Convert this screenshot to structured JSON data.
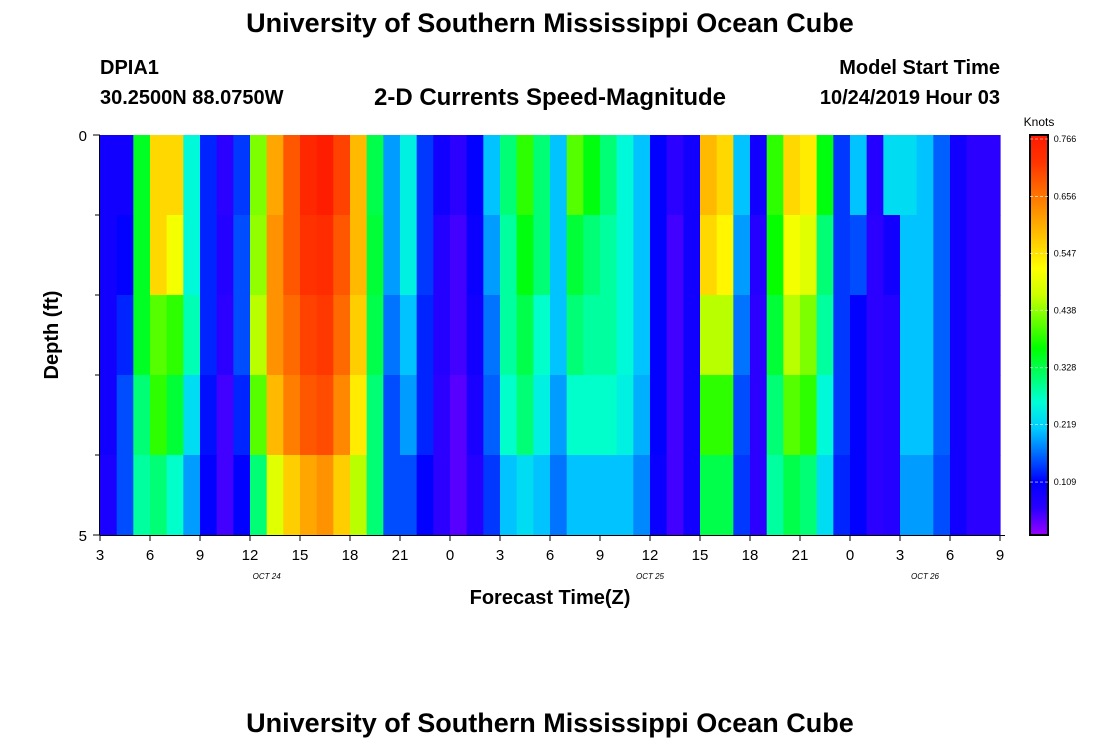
{
  "header": {
    "title_top": "University of Southern Mississippi Ocean Cube",
    "title_bottom": "University of Southern Mississippi Ocean Cube",
    "station": "DPIA1",
    "coords": "30.2500N 88.0750W",
    "chart_title": "2-D Currents Speed-Magnitude",
    "model_label": "Model Start Time",
    "model_time": "10/24/2019 Hour 03"
  },
  "colors": {
    "scale": [
      "#9900ff",
      "#2a00ff",
      "#0000ff",
      "#0066ff",
      "#00ccff",
      "#00ffd5",
      "#00ff66",
      "#00ff00",
      "#66ff00",
      "#ccff00",
      "#ffff00",
      "#ffcc00",
      "#ff9900",
      "#ff6600",
      "#ff3300",
      "#ff1a00"
    ]
  },
  "chart_data": {
    "type": "heatmap",
    "title": "2-D Currents Speed-Magnitude",
    "xlabel": "Forecast Time(Z)",
    "ylabel": "Depth (ft)",
    "x_start_hour": 3,
    "x_end_hour": 57,
    "x_step_hours": 1,
    "ylim": [
      0,
      5
    ],
    "y_ticks": [
      "0",
      "5"
    ],
    "y_minor_ticks": 6,
    "x_tick_labels": [
      "3",
      "6",
      "9",
      "12",
      "15",
      "18",
      "21",
      "0",
      "3",
      "6",
      "9",
      "12",
      "15",
      "18",
      "21",
      "0",
      "3",
      "6",
      "9"
    ],
    "date_labels": [
      {
        "text": "OCT  24",
        "hour": 13
      },
      {
        "text": "OCT  25",
        "hour": 36
      },
      {
        "text": "OCT  26",
        "hour": 52.5
      }
    ],
    "colorbar": {
      "label": "Knots",
      "ticks": [
        "0.766",
        "0.656",
        "0.547",
        "0.438",
        "0.328",
        "0.219",
        "0.109"
      ],
      "min": 0,
      "max": 0.766
    },
    "depth_rows": 5,
    "values": [
      [
        0.08,
        0.08,
        0.34,
        0.55,
        0.55,
        0.25,
        0.12,
        0.05,
        0.13,
        0.42,
        0.6,
        0.68,
        0.74,
        0.76,
        0.7,
        0.58,
        0.32,
        0.18,
        0.24,
        0.13,
        0.08,
        0.05,
        0.1,
        0.2,
        0.3,
        0.38,
        0.3,
        0.2,
        0.4,
        0.35,
        0.3,
        0.25,
        0.2,
        0.1,
        0.05,
        0.08,
        0.58,
        0.55,
        0.2,
        0.08,
        0.38,
        0.55,
        0.53,
        0.35,
        0.13,
        0.2,
        0.06,
        0.22,
        0.22,
        0.2,
        0.15,
        0.08,
        0.05,
        0.05
      ],
      [
        0.08,
        0.1,
        0.34,
        0.55,
        0.5,
        0.25,
        0.12,
        0.06,
        0.14,
        0.43,
        0.62,
        0.68,
        0.72,
        0.73,
        0.68,
        0.58,
        0.33,
        0.18,
        0.24,
        0.13,
        0.06,
        0.04,
        0.09,
        0.18,
        0.28,
        0.35,
        0.3,
        0.2,
        0.33,
        0.3,
        0.28,
        0.25,
        0.2,
        0.1,
        0.04,
        0.08,
        0.55,
        0.52,
        0.18,
        0.06,
        0.36,
        0.5,
        0.48,
        0.3,
        0.13,
        0.14,
        0.05,
        0.08,
        0.2,
        0.2,
        0.15,
        0.08,
        0.05,
        0.05
      ],
      [
        0.08,
        0.12,
        0.34,
        0.4,
        0.38,
        0.27,
        0.12,
        0.05,
        0.14,
        0.45,
        0.62,
        0.66,
        0.7,
        0.71,
        0.66,
        0.56,
        0.32,
        0.16,
        0.2,
        0.12,
        0.06,
        0.04,
        0.08,
        0.16,
        0.28,
        0.32,
        0.26,
        0.2,
        0.3,
        0.28,
        0.28,
        0.25,
        0.2,
        0.1,
        0.04,
        0.08,
        0.45,
        0.45,
        0.16,
        0.05,
        0.33,
        0.45,
        0.42,
        0.28,
        0.13,
        0.1,
        0.05,
        0.06,
        0.2,
        0.2,
        0.15,
        0.08,
        0.05,
        0.05
      ],
      [
        0.08,
        0.14,
        0.3,
        0.38,
        0.33,
        0.22,
        0.11,
        0.04,
        0.12,
        0.4,
        0.58,
        0.64,
        0.68,
        0.69,
        0.63,
        0.53,
        0.3,
        0.14,
        0.18,
        0.12,
        0.05,
        0.03,
        0.07,
        0.15,
        0.26,
        0.3,
        0.24,
        0.18,
        0.26,
        0.26,
        0.26,
        0.24,
        0.19,
        0.1,
        0.04,
        0.08,
        0.38,
        0.38,
        0.14,
        0.05,
        0.3,
        0.4,
        0.38,
        0.25,
        0.13,
        0.1,
        0.05,
        0.06,
        0.2,
        0.2,
        0.15,
        0.08,
        0.05,
        0.05
      ],
      [
        0.07,
        0.14,
        0.28,
        0.3,
        0.26,
        0.18,
        0.1,
        0.04,
        0.1,
        0.3,
        0.48,
        0.56,
        0.6,
        0.62,
        0.56,
        0.45,
        0.3,
        0.14,
        0.14,
        0.1,
        0.05,
        0.03,
        0.06,
        0.13,
        0.2,
        0.22,
        0.2,
        0.16,
        0.2,
        0.2,
        0.2,
        0.2,
        0.17,
        0.09,
        0.04,
        0.08,
        0.32,
        0.32,
        0.13,
        0.05,
        0.28,
        0.32,
        0.3,
        0.22,
        0.12,
        0.1,
        0.05,
        0.06,
        0.18,
        0.18,
        0.14,
        0.08,
        0.05,
        0.05
      ]
    ]
  }
}
